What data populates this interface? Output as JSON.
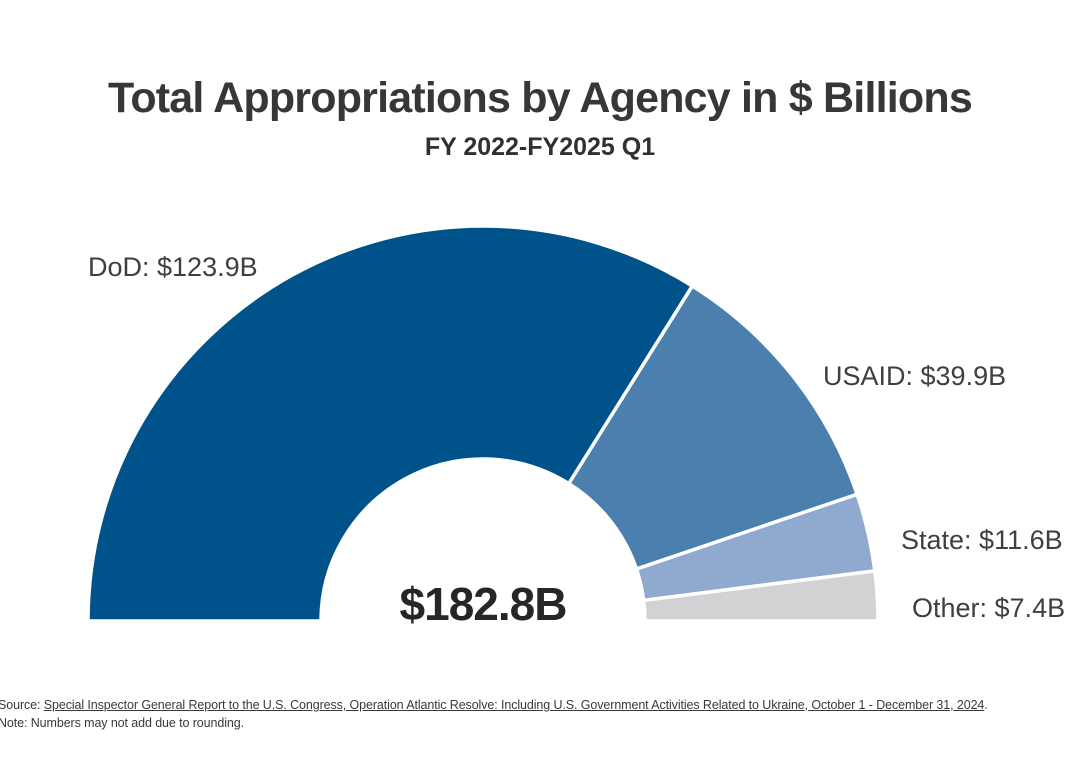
{
  "chart_data": {
    "type": "pie",
    "variant": "half-donut",
    "title": "Total Appropriations by Agency in $ Billions",
    "subtitle": "FY 2022-FY2025 Q1",
    "unit": "$ Billions",
    "total_value": 182.8,
    "total_label": "$182.8B",
    "start_angle_deg": 180,
    "end_angle_deg": 0,
    "separator_color": "#ffffff",
    "segments": [
      {
        "name": "DoD",
        "value": 123.9,
        "label": "DoD: $123.9B",
        "color": "#00538a"
      },
      {
        "name": "USAID",
        "value": 39.9,
        "label": "USAID: $39.9B",
        "color": "#4a7fae"
      },
      {
        "name": "State",
        "value": 11.6,
        "label": "State: $11.6B",
        "color": "#8fa9cf"
      },
      {
        "name": "Other",
        "value": 7.4,
        "label": "Other: $7.4B",
        "color": "#d2d2d4"
      }
    ]
  },
  "footer": {
    "source_prefix": "Source: ",
    "source_link": "Special Inspector General Report to the U.S. Congress, Operation Atlantic Resolve: Including U.S. Government Activities Related to Ukraine, October 1 - December 31, 2024",
    "source_suffix": ".",
    "note": "Note: Numbers may not add due to rounding."
  }
}
